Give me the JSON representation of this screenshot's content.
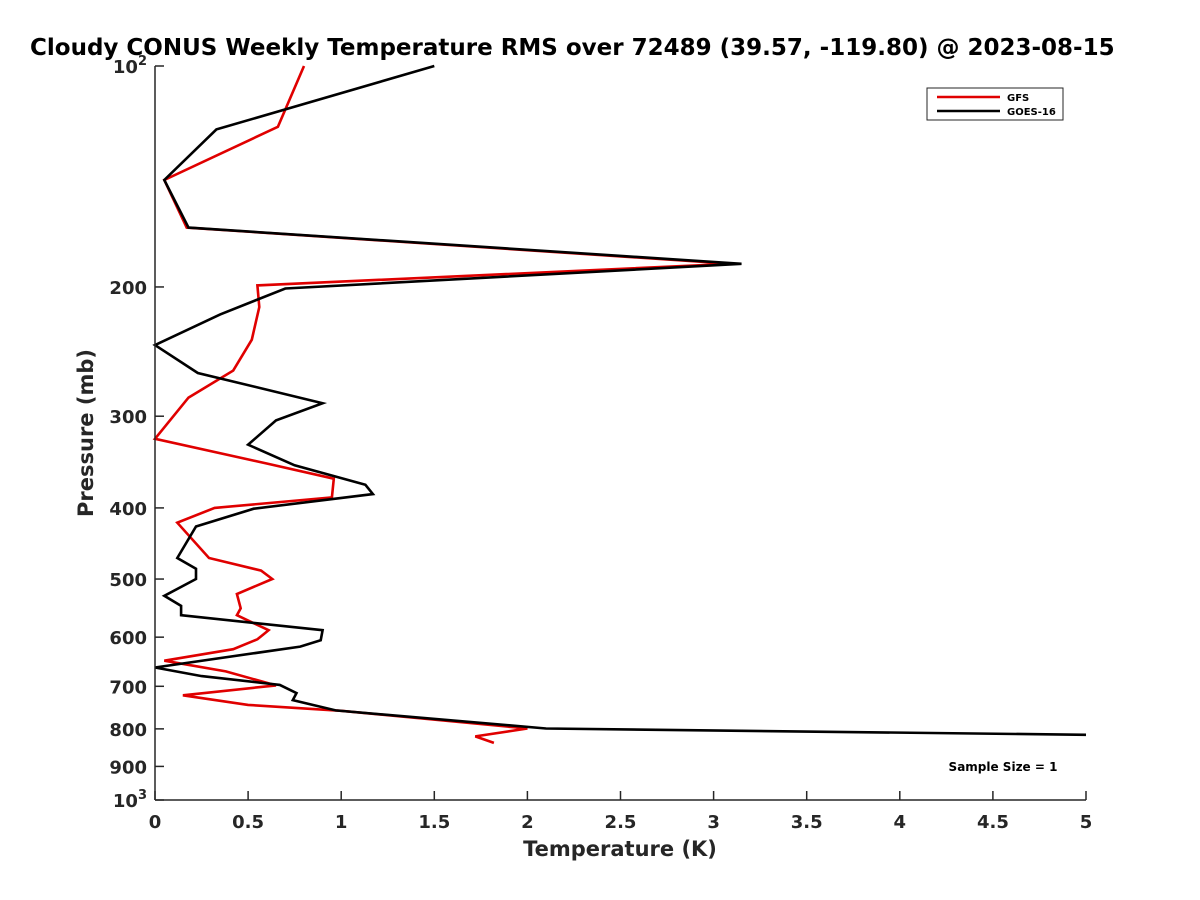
{
  "chart_data": {
    "type": "line",
    "title": "Cloudy CONUS Weekly Temperature RMS over 72489 (39.57, -119.80) @ 2023-08-15",
    "xlabel": "Temperature (K)",
    "ylabel": "Pressure (mb)",
    "xlim": [
      0,
      5
    ],
    "ylim": [
      100,
      1000
    ],
    "y_scale": "log",
    "y_reversed": true,
    "x_ticks": [
      "0",
      "0.5",
      "1",
      "1.5",
      "2",
      "2.5",
      "3",
      "3.5",
      "4",
      "4.5",
      "5"
    ],
    "y_ticks": [
      {
        "value": 100,
        "base": "10",
        "exp": "2"
      },
      {
        "value": 200,
        "label": "200"
      },
      {
        "value": 300,
        "label": "300"
      },
      {
        "value": 400,
        "label": "400"
      },
      {
        "value": 500,
        "label": "500"
      },
      {
        "value": 600,
        "label": "600"
      },
      {
        "value": 700,
        "label": "700"
      },
      {
        "value": 800,
        "label": "800"
      },
      {
        "value": 900,
        "label": "900"
      },
      {
        "value": 1000,
        "base": "10",
        "exp": "3"
      }
    ],
    "grid": false,
    "legend_position": "top-right",
    "annotation": "Sample Size = 1",
    "series": [
      {
        "name": "GFS",
        "color": "#e00000",
        "points": [
          [
            0.8,
            100
          ],
          [
            0.66,
            121
          ],
          [
            0.05,
            143
          ],
          [
            0.17,
            166
          ],
          [
            3.1,
            186
          ],
          [
            0.55,
            199
          ],
          [
            0.56,
            213
          ],
          [
            0.52,
            236
          ],
          [
            0.42,
            260
          ],
          [
            0.18,
            283
          ],
          [
            0.0,
            322
          ],
          [
            0.6,
            348
          ],
          [
            0.96,
            365
          ],
          [
            0.95,
            387
          ],
          [
            0.32,
            400
          ],
          [
            0.12,
            419
          ],
          [
            0.29,
            468
          ],
          [
            0.57,
            487
          ],
          [
            0.63,
            500
          ],
          [
            0.44,
            524
          ],
          [
            0.46,
            548
          ],
          [
            0.44,
            560
          ],
          [
            0.61,
            587
          ],
          [
            0.55,
            604
          ],
          [
            0.42,
            623
          ],
          [
            0.05,
            646
          ],
          [
            0.38,
            668
          ],
          [
            0.65,
            698
          ],
          [
            0.15,
            720
          ],
          [
            0.5,
            742
          ],
          [
            1.0,
            756
          ],
          [
            2.0,
            799
          ],
          [
            1.72,
            819
          ],
          [
            1.82,
            836
          ]
        ]
      },
      {
        "name": "GOES-16",
        "color": "#000000",
        "points": [
          [
            1.5,
            100
          ],
          [
            0.33,
            122
          ],
          [
            0.05,
            143
          ],
          [
            0.18,
            166
          ],
          [
            3.15,
            186
          ],
          [
            0.7,
            201
          ],
          [
            0.35,
            218
          ],
          [
            0.0,
            240
          ],
          [
            0.23,
            262
          ],
          [
            0.9,
            288
          ],
          [
            0.65,
            304
          ],
          [
            0.5,
            328
          ],
          [
            0.75,
            350
          ],
          [
            1.13,
            372
          ],
          [
            1.17,
            383
          ],
          [
            0.53,
            401
          ],
          [
            0.22,
            424
          ],
          [
            0.12,
            468
          ],
          [
            0.22,
            484
          ],
          [
            0.22,
            500
          ],
          [
            0.05,
            527
          ],
          [
            0.14,
            544
          ],
          [
            0.14,
            560
          ],
          [
            0.9,
            587
          ],
          [
            0.89,
            606
          ],
          [
            0.78,
            618
          ],
          [
            0.0,
            660
          ],
          [
            0.25,
            678
          ],
          [
            0.67,
            697
          ],
          [
            0.76,
            715
          ],
          [
            0.74,
            731
          ],
          [
            0.97,
            755
          ],
          [
            2.1,
            799
          ],
          [
            5.0,
            815
          ]
        ]
      }
    ]
  }
}
